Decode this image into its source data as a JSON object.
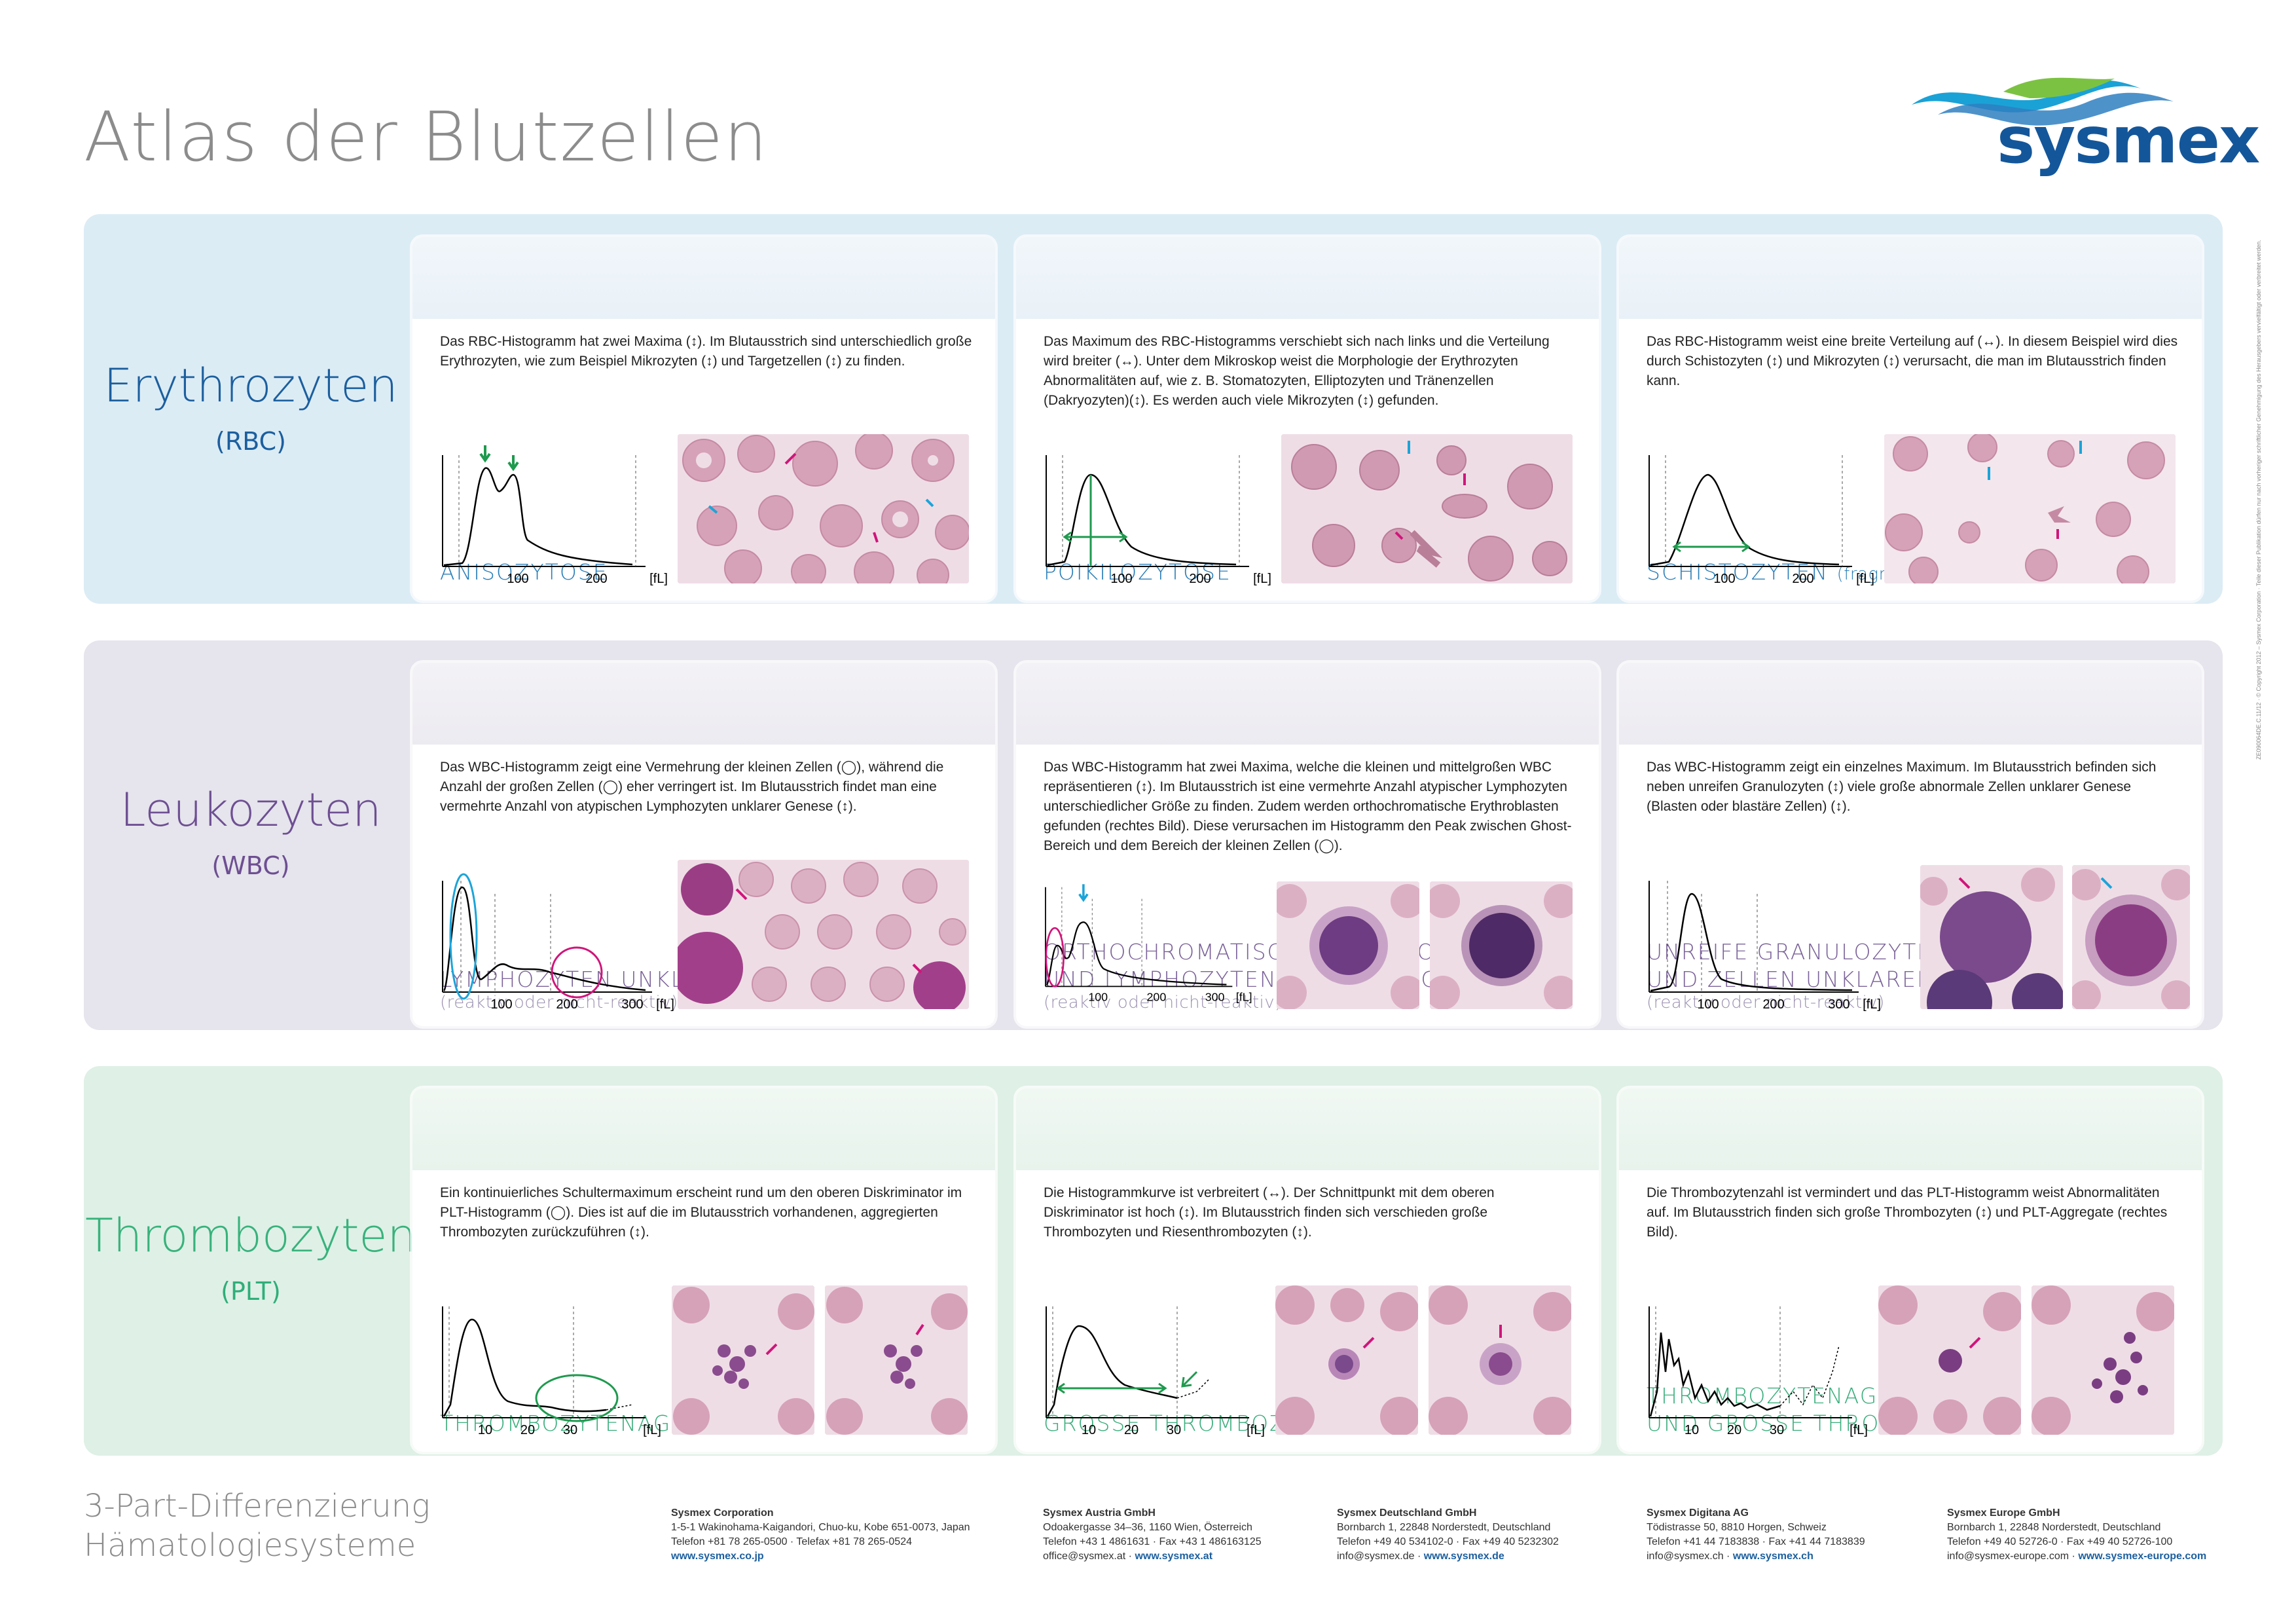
{
  "title": "Atlas der Blutzellen",
  "logo": {
    "text": "sysmex"
  },
  "categories": [
    {
      "name": "Erythrozyten",
      "abbr": "(RBC)"
    },
    {
      "name": "Leukozyten",
      "abbr": "(WBC)"
    },
    {
      "name": "Thrombozyten",
      "abbr": "(PLT)"
    }
  ],
  "rbc": {
    "aniso": {
      "title": "ANISOZYTOSE",
      "text": "Das RBC-Histogramm hat zwei Maxima (↕). Im Blutausstrich sind unterschiedlich große Erythrozyten, wie zum Beispiel Mikrozyten (↕) und Targetzellen (↕) zu finden.",
      "ticks": [
        "100",
        "200",
        "[fL]"
      ]
    },
    "poik": {
      "title": "POIKILOZYTOSE",
      "text": "Das Maximum des RBC-Histogramms verschiebt sich nach links und die Verteilung wird breiter (↔). Unter dem Mikroskop weist die Morphologie der Erythrozyten Abnormalitäten auf, wie z. B. Stomatozyten, Elliptozyten und Tränenzellen (Dakryozyten)(↕). Es werden auch viele Mikrozyten (↕) gefunden.",
      "ticks": [
        "100",
        "200",
        "[fL]"
      ]
    },
    "schisto": {
      "title": "SCHISTOZYTEN",
      "subtitle": "(fragmentierte Erythrozyten)",
      "text": "Das RBC-Histogramm weist eine breite Verteilung auf (↔). In diesem Beispiel wird dies durch Schistozyten (↕) und Mikrozyten (↕) verursacht, die man im Blutausstrich finden kann.",
      "ticks": [
        "100",
        "200",
        "[fL]"
      ]
    }
  },
  "wbc": {
    "lympho": {
      "title": "LYMPHOZYTEN UNKLARER GENESE",
      "subtitle": "(reaktiv oder nicht-reaktiv)",
      "text": "Das WBC-Histogramm zeigt eine Vermehrung der kleinen Zellen (◯), während die Anzahl der großen Zellen (◯) eher verringert ist. Im Blutausstrich findet man eine vermehrte Anzahl von atypischen Lymphozyten unklarer Genese (↕).",
      "ticks": [
        "100",
        "200",
        "300",
        "[fL]"
      ]
    },
    "ortho": {
      "title_line1": "ORTHOCHROMATISCHE ERYTHROBLASTEN",
      "title_line2": "UND LYMPHOZYTEN UNKLARER GENESE",
      "subtitle": "(reaktiv oder nicht-reaktiv)",
      "text": "Das WBC-Histogramm hat zwei Maxima, welche die kleinen und mittelgroßen WBC repräsentieren (↕). Im Blutausstrich ist eine vermehrte Anzahl atypischer Lymphozyten unterschiedlicher Größe zu finden. Zudem werden orthochromatische Erythroblasten gefunden (rechtes Bild). Diese verursachen im Histogramm den Peak zwischen Ghost-Bereich und dem Bereich der kleinen Zellen (◯).",
      "ticks": [
        "100",
        "200",
        "300",
        "[fL]"
      ]
    },
    "unreif": {
      "title_line1": "UNREIFE GRANULOZYTEN",
      "title_line2": "UND ZELLEN UNKLARER GENESE",
      "subtitle": "(reaktiv oder nicht-reaktiv)",
      "text": "Das WBC-Histogramm zeigt ein einzelnes Maximum. Im Blutausstrich befinden sich neben unreifen Granulozyten (↕) viele große abnormale Zellen unklarer Genese (Blasten oder blastäre Zellen) (↕).",
      "ticks": [
        "100",
        "200",
        "300",
        "[fL]"
      ]
    }
  },
  "plt": {
    "aggr": {
      "title": "THROMBOZYTENAGGREGATION",
      "text": "Ein kontinuierliches Schultermaximum erscheint rund um den oberen Diskriminator im PLT-Histogramm (◯). Dies ist auf die im Blutausstrich vorhandenen, aggregierten Thrombozyten zurückzuführen (↕).",
      "ticks": [
        "10",
        "20",
        "30",
        "[fL]"
      ]
    },
    "gross": {
      "title": "GROSSE THROMBOZYTEN",
      "text": "Die Histogrammkurve ist verbreitert (↔). Der Schnittpunkt mit dem oberen Diskriminator ist hoch (↕). Im Blutausstrich finden sich verschieden große Thrombozyten und Riesenthrombozyten (↕).",
      "ticks": [
        "10",
        "20",
        "30",
        "[fL]"
      ]
    },
    "aggr_gross": {
      "title_line1": "THROMBOZYTENAGGREGATION",
      "title_line2": "UND GROSSE THROMBOZYTEN",
      "text": "Die Thrombozytenzahl ist vermindert und das PLT-Histogramm weist Abnormalitäten auf. Im Blutausstrich finden sich große Thrombozyten (↕) und PLT-Aggregate (rechtes Bild).",
      "ticks": [
        "10",
        "20",
        "30",
        "[fL]"
      ]
    }
  },
  "footer": {
    "title_line1": "3-Part-Differenzierung",
    "title_line2": "Hämatologiesysteme",
    "addresses": [
      {
        "company": "Sysmex Corporation",
        "line1": "1-5-1 Wakinohama-Kaigandori, Chuo-ku, Kobe 651-0073, Japan",
        "line2": "Telefon +81 78 265-0500 · Telefax +81 78 265-0524",
        "web": "www.sysmex.co.jp"
      },
      {
        "company": "Sysmex Austria GmbH",
        "line1": "Odoakergasse 34–36, 1160 Wien, Österreich",
        "line2": "Telefon +43 1 4861631 · Fax +43 1 486163125",
        "line3": "office@sysmex.at · ",
        "web": "www.sysmex.at"
      },
      {
        "company": "Sysmex Deutschland GmbH",
        "line1": "Bornbarch 1, 22848 Norderstedt, Deutschland",
        "line2": "Telefon +49 40 534102-0 · Fax +49 40 5232302",
        "line3": "info@sysmex.de · ",
        "web": "www.sysmex.de"
      },
      {
        "company": "Sysmex Digitana AG",
        "line1": "Tödistrasse 50, 8810 Horgen, Schweiz",
        "line2": "Telefon +41 44 7183838 · Fax +41 44 7183839",
        "line3": "info@sysmex.ch · ",
        "web": "www.sysmex.ch"
      },
      {
        "company": "Sysmex Europe GmbH",
        "line1": "Bornbarch 1, 22848 Norderstedt, Deutschland",
        "line2": "Telefon +49 40 52726-0 · Fax +49 40 52726-100",
        "line3": "info@sysmex-europe.com · ",
        "web": "www.sysmex-europe.com"
      }
    ],
    "side_note": "ZE090064DE.C.11/12 · © Copyright 2012 – Sysmex Corporation · Teile dieser Publikation dürfen nur nach vorheriger schriftlicher Genehmigung des Herausgebers vervielfältigt oder verbreitet werden."
  },
  "colors": {
    "rbc": "#1c5f9e",
    "wbc": "#6d4f92",
    "plt": "#38b27c",
    "arrow_green": "#1e9a4e",
    "arrow_pink": "#d0157a",
    "arrow_blue": "#1ca4d8"
  }
}
